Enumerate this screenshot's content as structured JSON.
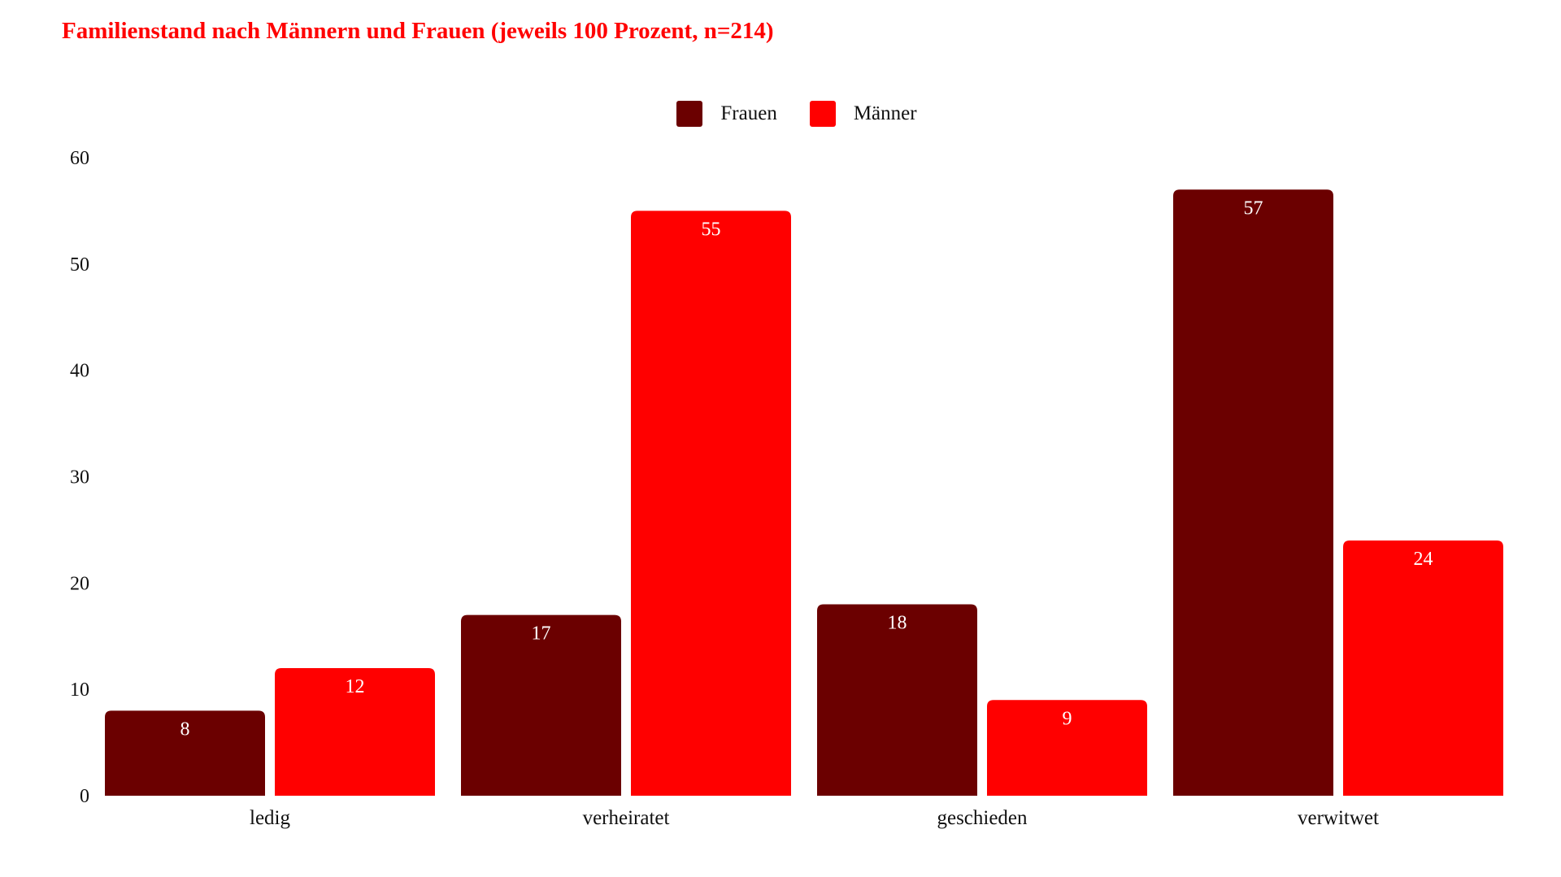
{
  "chart_data": {
    "type": "bar",
    "title": "Familienstand nach Männern und Frauen (jeweils 100 Prozent, n=214)",
    "categories": [
      "ledig",
      "verheiratet",
      "geschieden",
      "verwitwet"
    ],
    "series": [
      {
        "name": "Frauen",
        "color": "#6b0000",
        "values": [
          8,
          17,
          18,
          57
        ]
      },
      {
        "name": "Männer",
        "color": "#ff0000",
        "values": [
          12,
          55,
          9,
          24
        ]
      }
    ],
    "yticks": [
      0,
      10,
      20,
      30,
      40,
      50,
      60
    ],
    "ylim": [
      0,
      60
    ],
    "xlabel": "",
    "ylabel": "",
    "grid": false,
    "legend": "top-center"
  }
}
